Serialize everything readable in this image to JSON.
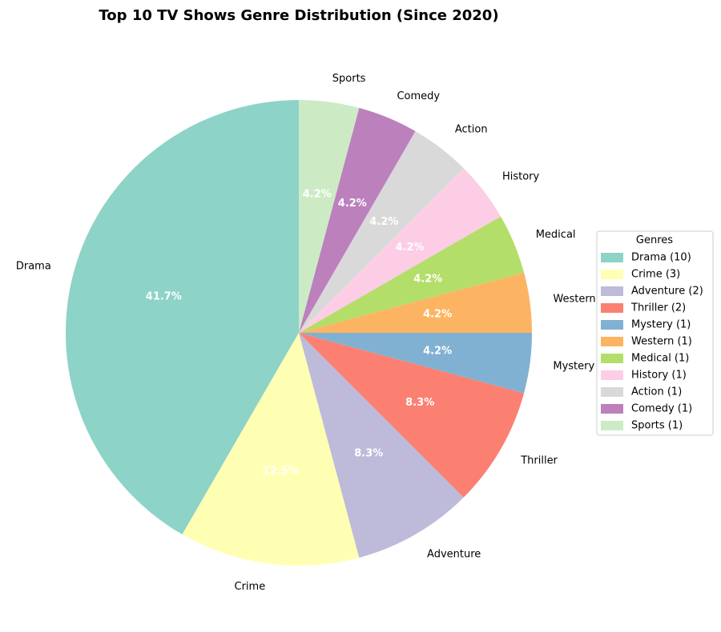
{
  "chart_data": {
    "type": "pie",
    "title": "Top 10 TV Shows Genre Distribution (Since 2020)",
    "categories": [
      "Drama",
      "Crime",
      "Adventure",
      "Thriller",
      "Mystery",
      "Western",
      "Medical",
      "History",
      "Action",
      "Comedy",
      "Sports"
    ],
    "values": [
      10,
      3,
      2,
      2,
      1,
      1,
      1,
      1,
      1,
      1,
      1
    ],
    "percent_labels": [
      "41.7%",
      "12.5%",
      "8.3%",
      "8.3%",
      "4.2%",
      "4.2%",
      "4.2%",
      "4.2%",
      "4.2%",
      "4.2%",
      "4.2%"
    ],
    "colors": [
      "#8dd3c7",
      "#ffffb3",
      "#bebada",
      "#fb8072",
      "#80b1d3",
      "#fdb462",
      "#b3de69",
      "#fccde5",
      "#d9d9d9",
      "#bc80bd",
      "#ccebc5"
    ],
    "start_angle_deg": 90,
    "direction": "counterclockwise",
    "legend": {
      "title": "Genres",
      "placement": "center-right",
      "entries": [
        "Drama (10)",
        "Crime (3)",
        "Adventure (2)",
        "Thriller (2)",
        "Mystery (1)",
        "Western (1)",
        "Medical (1)",
        "History (1)",
        "Action (1)",
        "Comedy (1)",
        "Sports (1)"
      ]
    }
  }
}
